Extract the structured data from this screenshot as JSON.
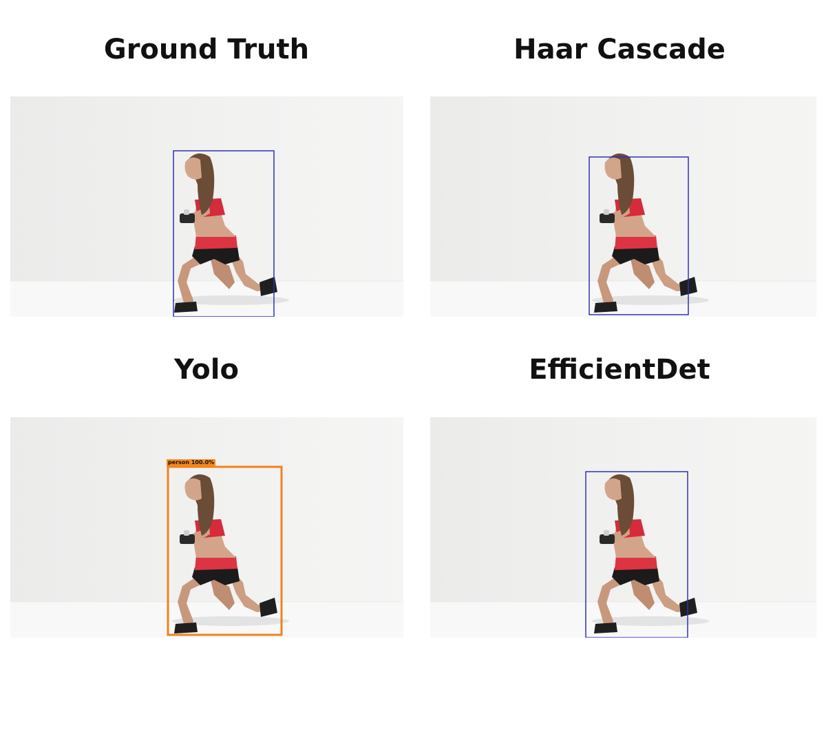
{
  "panels": [
    {
      "title": "Ground Truth",
      "box_color": "#3030b8"
    },
    {
      "title": "Haar Cascade",
      "box_color": "#3030b8"
    },
    {
      "title": "Yolo",
      "box_color": "#f0821c",
      "label": "person 100.0%"
    },
    {
      "title": "EfficientDet",
      "box_color": "#3030b8"
    }
  ]
}
